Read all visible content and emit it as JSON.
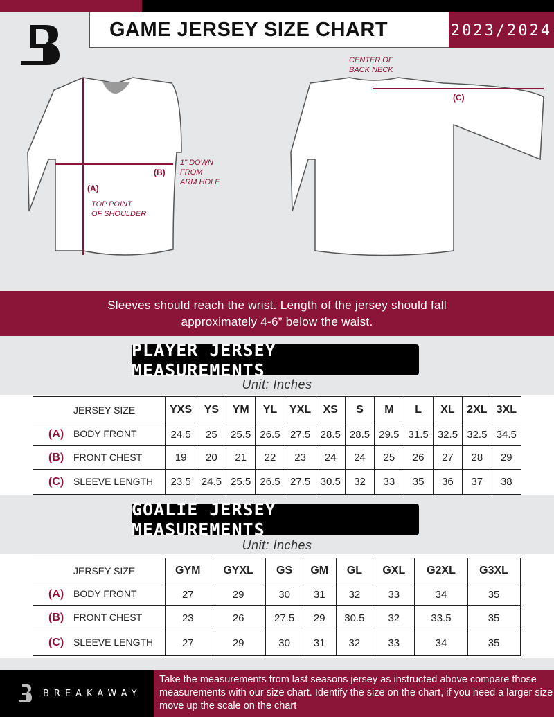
{
  "header": {
    "title": "GAME JERSEY SIZE CHART",
    "season": "2023/2024"
  },
  "diagram": {
    "front_labels": {
      "a": "(A)",
      "b": "(B)",
      "a_note": "TOP POINT\nOF SHOULDER",
      "b_note": "1\" DOWN\nFROM\nARM HOLE"
    },
    "back_labels": {
      "c": "(C)",
      "c_note": "CENTER OF\nBACK NECK"
    }
  },
  "instructions": {
    "line1": "Sleeves should reach the wrist. Length of the jersey should fall",
    "line2": "approximately 4-6” below the waist."
  },
  "player": {
    "title": "PLAYER JERSEY MEASUREMENTS",
    "unit": "Unit: Inches",
    "header": "JERSEY SIZE",
    "sizes": [
      "YXS",
      "YS",
      "YM",
      "YL",
      "YXL",
      "XS",
      "S",
      "M",
      "L",
      "XL",
      "2XL",
      "3XL"
    ],
    "rows": [
      {
        "key": "(A)",
        "label": "BODY FRONT",
        "values": [
          "24.5",
          "25",
          "25.5",
          "26.5",
          "27.5",
          "28.5",
          "28.5",
          "29.5",
          "31.5",
          "32.5",
          "32.5",
          "34.5"
        ]
      },
      {
        "key": "(B)",
        "label": "FRONT CHEST",
        "values": [
          "19",
          "20",
          "21",
          "22",
          "23",
          "24",
          "24",
          "25",
          "26",
          "27",
          "28",
          "29"
        ]
      },
      {
        "key": "(C)",
        "label": "SLEEVE LENGTH",
        "values": [
          "23.5",
          "24.5",
          "25.5",
          "26.5",
          "27.5",
          "30.5",
          "32",
          "33",
          "35",
          "36",
          "37",
          "38"
        ]
      }
    ]
  },
  "goalie": {
    "title": "GOALIE JERSEY MEASUREMENTS",
    "unit": "Unit: Inches",
    "header": "JERSEY SIZE",
    "sizes": [
      "GYM",
      "GYXL",
      "GS",
      "GM",
      "GL",
      "GXL",
      "G2XL",
      "G3XL",
      ""
    ],
    "rows": [
      {
        "key": "(A)",
        "label": "BODY FRONT",
        "values": [
          "27",
          "29",
          "30",
          "31",
          "32",
          "33",
          "34",
          "35",
          ""
        ]
      },
      {
        "key": "(B)",
        "label": "FRONT CHEST",
        "values": [
          "23",
          "26",
          "27.5",
          "29",
          "30.5",
          "32",
          "33.5",
          "35",
          ""
        ]
      },
      {
        "key": "(C)",
        "label": "SLEEVE LENGTH",
        "values": [
          "27",
          "29",
          "30",
          "31",
          "32",
          "33",
          "34",
          "35",
          ""
        ]
      }
    ]
  },
  "footer": {
    "brand": "BREAKAWAY",
    "text": "Take the measurements from last seasons jersey as instructed above compare those measurements  with our size chart. Identify the size on the chart, if you need a larger size move up the scale on the chart"
  },
  "colors": {
    "accent": "#8a1538",
    "dark": "#000000",
    "background": "#e6e7e8"
  }
}
